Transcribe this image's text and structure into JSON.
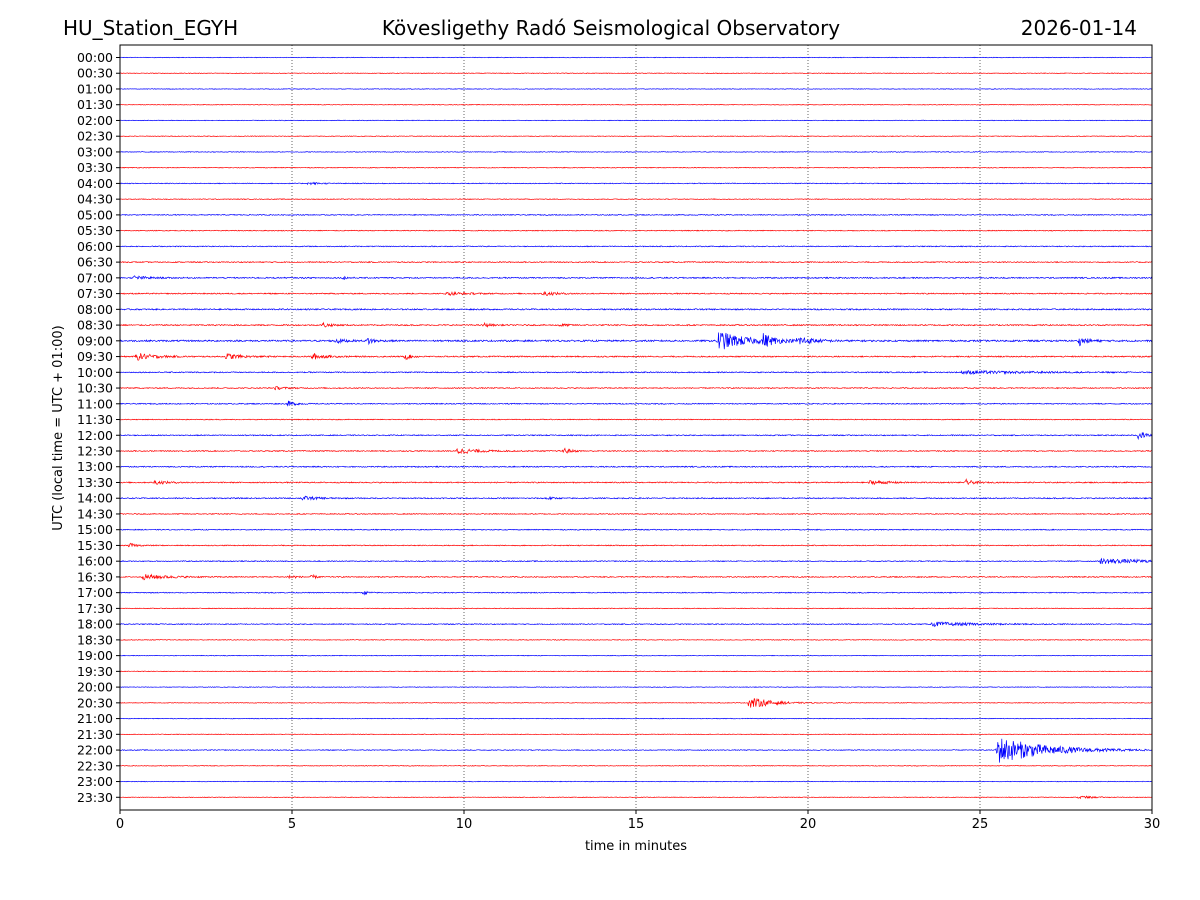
{
  "header": {
    "station": "HU_Station_EGYH",
    "observatory": "Kövesligethy Radó Seismological Observatory",
    "date": "2026-01-14"
  },
  "chart_data": {
    "type": "line",
    "title": "Kövesligethy Radó Seismological Observatory",
    "xlabel": "time in minutes",
    "ylabel": "UTC (local time = UTC + 01:00)",
    "xlim": [
      0,
      30
    ],
    "xticks": [
      0,
      5,
      10,
      15,
      20,
      25,
      30
    ],
    "vertical_gridlines_minutes": [
      5,
      10,
      15,
      20,
      25
    ],
    "trace_colors": [
      "#0000ff",
      "#ff0000"
    ],
    "rows": [
      "00:00",
      "00:30",
      "01:00",
      "01:30",
      "02:00",
      "02:30",
      "03:00",
      "03:30",
      "04:00",
      "04:30",
      "05:00",
      "05:30",
      "06:00",
      "06:30",
      "07:00",
      "07:30",
      "08:00",
      "08:30",
      "09:00",
      "09:30",
      "10:00",
      "10:30",
      "11:00",
      "11:30",
      "12:00",
      "12:30",
      "13:00",
      "13:30",
      "14:00",
      "14:30",
      "15:00",
      "15:30",
      "16:00",
      "16:30",
      "17:00",
      "17:30",
      "18:00",
      "18:30",
      "19:00",
      "19:30",
      "20:00",
      "20:30",
      "21:00",
      "21:30",
      "22:00",
      "22:30",
      "23:00",
      "23:30"
    ],
    "noise_levels": [
      0.3,
      0.3,
      0.3,
      0.3,
      0.3,
      0.3,
      0.35,
      0.35,
      0.4,
      0.35,
      0.45,
      0.4,
      0.45,
      0.5,
      0.6,
      0.55,
      0.65,
      0.6,
      0.8,
      0.6,
      0.55,
      0.5,
      0.5,
      0.4,
      0.5,
      0.5,
      0.55,
      0.55,
      0.55,
      0.45,
      0.45,
      0.45,
      0.45,
      0.5,
      0.45,
      0.35,
      0.45,
      0.35,
      0.3,
      0.3,
      0.3,
      0.3,
      0.3,
      0.3,
      0.4,
      0.3,
      0.3,
      0.3
    ],
    "events": [
      {
        "row": 8,
        "minute": 5.5,
        "amplitude": 1.2,
        "duration": 0.6
      },
      {
        "row": 14,
        "minute": 0.4,
        "amplitude": 2.0,
        "duration": 0.8
      },
      {
        "row": 14,
        "minute": 6.5,
        "amplitude": 1.8,
        "duration": 0.2
      },
      {
        "row": 15,
        "minute": 9.5,
        "amplitude": 1.5,
        "duration": 1.2
      },
      {
        "row": 15,
        "minute": 12.3,
        "amplitude": 2.0,
        "duration": 0.8
      },
      {
        "row": 17,
        "minute": 5.9,
        "amplitude": 2.5,
        "duration": 0.4
      },
      {
        "row": 17,
        "minute": 10.6,
        "amplitude": 1.8,
        "duration": 0.3
      },
      {
        "row": 17,
        "minute": 12.8,
        "amplitude": 1.8,
        "duration": 0.3
      },
      {
        "row": 18,
        "minute": 6.3,
        "amplitude": 2.5,
        "duration": 0.4
      },
      {
        "row": 18,
        "minute": 7.2,
        "amplitude": 4.0,
        "duration": 0.3
      },
      {
        "row": 18,
        "minute": 17.4,
        "amplitude": 10.0,
        "duration": 1.5
      },
      {
        "row": 18,
        "minute": 18.7,
        "amplitude": 6.0,
        "duration": 0.6
      },
      {
        "row": 18,
        "minute": 19.7,
        "amplitude": 4.5,
        "duration": 0.8
      },
      {
        "row": 18,
        "minute": 27.9,
        "amplitude": 4.0,
        "duration": 0.5
      },
      {
        "row": 19,
        "minute": 0.5,
        "amplitude": 3.5,
        "duration": 1.0
      },
      {
        "row": 19,
        "minute": 3.1,
        "amplitude": 3.0,
        "duration": 0.8
      },
      {
        "row": 19,
        "minute": 5.6,
        "amplitude": 3.0,
        "duration": 0.7
      },
      {
        "row": 19,
        "minute": 8.3,
        "amplitude": 3.0,
        "duration": 0.3
      },
      {
        "row": 20,
        "minute": 24.5,
        "amplitude": 1.5,
        "duration": 4.0
      },
      {
        "row": 21,
        "minute": 4.5,
        "amplitude": 1.5,
        "duration": 0.6
      },
      {
        "row": 22,
        "minute": 4.9,
        "amplitude": 2.5,
        "duration": 0.4
      },
      {
        "row": 24,
        "minute": 29.6,
        "amplitude": 4.0,
        "duration": 0.5
      },
      {
        "row": 25,
        "minute": 9.8,
        "amplitude": 3.0,
        "duration": 1.2
      },
      {
        "row": 25,
        "minute": 12.9,
        "amplitude": 3.0,
        "duration": 0.4
      },
      {
        "row": 27,
        "minute": 1.0,
        "amplitude": 1.8,
        "duration": 0.8
      },
      {
        "row": 27,
        "minute": 21.8,
        "amplitude": 1.8,
        "duration": 1.2
      },
      {
        "row": 27,
        "minute": 24.6,
        "amplitude": 2.8,
        "duration": 0.4
      },
      {
        "row": 28,
        "minute": 5.3,
        "amplitude": 2.0,
        "duration": 0.8
      },
      {
        "row": 28,
        "minute": 12.4,
        "amplitude": 1.8,
        "duration": 0.3
      },
      {
        "row": 31,
        "minute": 0.3,
        "amplitude": 1.8,
        "duration": 0.4
      },
      {
        "row": 32,
        "minute": 28.5,
        "amplitude": 2.5,
        "duration": 3.0
      },
      {
        "row": 33,
        "minute": 0.7,
        "amplitude": 2.5,
        "duration": 1.5
      },
      {
        "row": 33,
        "minute": 4.9,
        "amplitude": 2.0,
        "duration": 0.4
      },
      {
        "row": 33,
        "minute": 5.6,
        "amplitude": 2.0,
        "duration": 0.2
      },
      {
        "row": 34,
        "minute": 7.1,
        "amplitude": 1.5,
        "duration": 0.3
      },
      {
        "row": 36,
        "minute": 23.6,
        "amplitude": 2.2,
        "duration": 2.5
      },
      {
        "row": 41,
        "minute": 18.3,
        "amplitude": 6.0,
        "duration": 1.2
      },
      {
        "row": 44,
        "minute": 25.5,
        "amplitude": 14.0,
        "duration": 2.8
      },
      {
        "row": 47,
        "minute": 27.9,
        "amplitude": 1.8,
        "duration": 0.6
      }
    ]
  }
}
